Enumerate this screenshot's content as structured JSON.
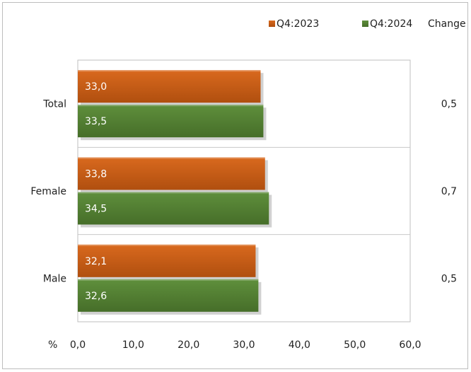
{
  "chart_data": {
    "type": "bar",
    "orientation": "horizontal",
    "categories": [
      "Total",
      "Female",
      "Male"
    ],
    "series": [
      {
        "name": "Q4:2023",
        "values": [
          33.0,
          33.8,
          32.1
        ],
        "labels": [
          "33,0",
          "33,8",
          "32,1"
        ],
        "color": "#c55a11"
      },
      {
        "name": "Q4:2024",
        "values": [
          33.5,
          34.5,
          32.6
        ],
        "labels": [
          "33,5",
          "34,5",
          "32,6"
        ],
        "color": "#548235"
      }
    ],
    "change_header": "Change",
    "change_values": [
      "0,5",
      "0,7",
      "0,5"
    ],
    "xlabel": "%",
    "xlim": [
      0,
      60
    ],
    "xticks": [
      0,
      10,
      20,
      30,
      40,
      50,
      60
    ],
    "xtick_labels": [
      "0,0",
      "10,0",
      "20,0",
      "30,0",
      "40,0",
      "50,0",
      "60,0"
    ],
    "legend_position": "top-right",
    "grid": false
  }
}
